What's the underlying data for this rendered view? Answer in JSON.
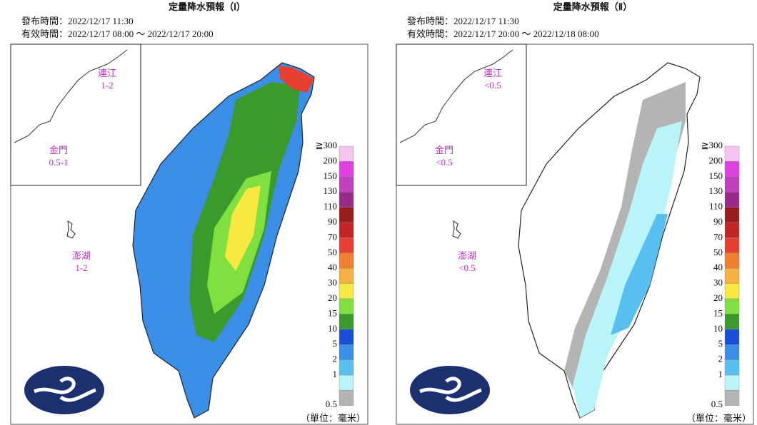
{
  "panels": [
    {
      "title": "定量降水預報（Ⅰ）",
      "issued": "發布時間：2022/12/17 11:30",
      "valid": "有效時間：2022/12/17 08:00 ～ 2022/12/17 20:00",
      "islands": [
        {
          "name": "連江",
          "value": "1-2"
        },
        {
          "name": "金門",
          "value": "0.5-1"
        },
        {
          "name": "澎湖",
          "value": "1-2"
        }
      ]
    },
    {
      "title": "定量降水預報（Ⅱ）",
      "issued": "發布時間：2022/12/17 11:30",
      "valid": "有效時間：2022/12/17 20:00 ～ 2022/12/18 08:00",
      "islands": [
        {
          "name": "連江",
          "value": "<0.5"
        },
        {
          "name": "金門",
          "value": "<0.5"
        },
        {
          "name": "澎湖",
          "value": "<0.5"
        }
      ]
    }
  ],
  "legend": {
    "unit": "（單位：毫米）",
    "items": [
      {
        "label": "≧300",
        "color": "#f4c4f0"
      },
      {
        "label": "200",
        "color": "#e040e0"
      },
      {
        "label": "150",
        "color": "#c040c0"
      },
      {
        "label": "130",
        "color": "#9a2a8a"
      },
      {
        "label": "110",
        "color": "#9a1c1c"
      },
      {
        "label": "90",
        "color": "#c42424"
      },
      {
        "label": "70",
        "color": "#e84030"
      },
      {
        "label": "50",
        "color": "#f08030"
      },
      {
        "label": "40",
        "color": "#f8b040"
      },
      {
        "label": "30",
        "color": "#f8e840"
      },
      {
        "label": "20",
        "color": "#80e040"
      },
      {
        "label": "15",
        "color": "#3a9a2c"
      },
      {
        "label": "10",
        "color": "#1a50d8"
      },
      {
        "label": "5",
        "color": "#3a90e8"
      },
      {
        "label": "2",
        "color": "#58c0f0"
      },
      {
        "label": "1",
        "color": "#b8f4f8"
      },
      {
        "label": "0.5",
        "color": "#b4b4b4"
      }
    ]
  }
}
